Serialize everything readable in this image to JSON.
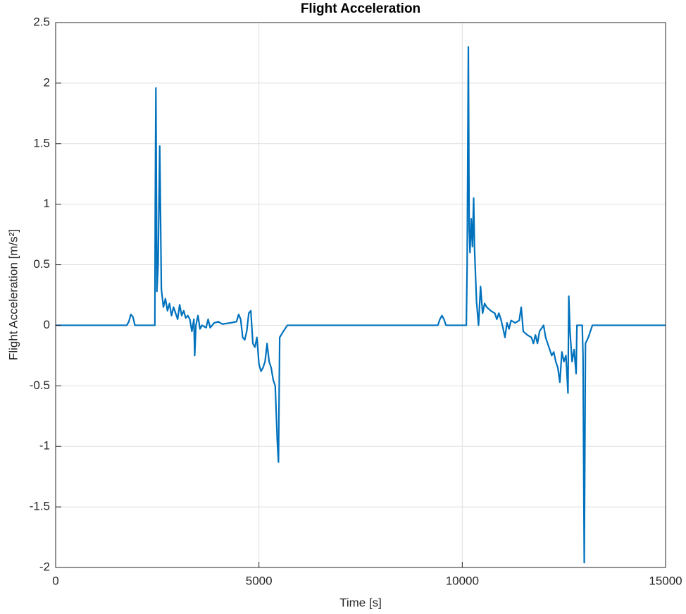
{
  "chart_data": {
    "type": "line",
    "title": "Flight Acceleration",
    "x_label": "Time [s]",
    "y_label": "Flight Acceleration [m/s²]",
    "x": [
      0,
      1750,
      1800,
      1850,
      1900,
      1950,
      2440,
      2450,
      2465,
      2490,
      2520,
      2560,
      2600,
      2650,
      2700,
      2750,
      2800,
      2850,
      2900,
      2950,
      3000,
      3050,
      3100,
      3150,
      3200,
      3250,
      3300,
      3350,
      3400,
      3420,
      3450,
      3500,
      3550,
      3600,
      3700,
      3750,
      3800,
      3900,
      4000,
      4100,
      4300,
      4450,
      4500,
      4550,
      4600,
      4650,
      4700,
      4750,
      4800,
      4850,
      4900,
      4950,
      5000,
      5050,
      5100,
      5150,
      5200,
      5250,
      5300,
      5350,
      5400,
      5450,
      5480,
      5510,
      5600,
      5700,
      9400,
      9450,
      9500,
      9550,
      9600,
      10100,
      10120,
      10150,
      10170,
      10190,
      10220,
      10250,
      10280,
      10300,
      10350,
      10400,
      10450,
      10500,
      10550,
      10600,
      10700,
      10800,
      10850,
      10900,
      10950,
      11000,
      11050,
      11100,
      11150,
      11200,
      11300,
      11400,
      11450,
      11500,
      11600,
      11700,
      11750,
      11800,
      11850,
      11900,
      12000,
      12050,
      12100,
      12150,
      12200,
      12250,
      12300,
      12350,
      12400,
      12450,
      12500,
      12550,
      12600,
      12620,
      12650,
      12700,
      12750,
      12800,
      12820,
      12950,
      12970,
      13000,
      13030,
      13100,
      13200,
      15000
    ],
    "series": [
      {
        "name": "Flight Acceleration",
        "color": "#0072BD",
        "values": [
          0,
          0,
          0.03,
          0.09,
          0.07,
          0,
          0,
          1.0,
          1.96,
          0.28,
          0.5,
          1.48,
          0.3,
          0.15,
          0.22,
          0.12,
          0.18,
          0.08,
          0.15,
          0.1,
          0.05,
          0.17,
          0.08,
          0.12,
          0.06,
          0.08,
          0.05,
          -0.05,
          0.05,
          -0.25,
          0,
          0.08,
          -0.03,
          0,
          -0.02,
          0.05,
          -0.02,
          0.02,
          0.03,
          0.01,
          0.02,
          0.03,
          0.09,
          0.05,
          -0.1,
          -0.12,
          -0.05,
          0.1,
          0.12,
          -0.15,
          -0.18,
          -0.1,
          -0.32,
          -0.38,
          -0.35,
          -0.3,
          -0.15,
          -0.3,
          -0.35,
          -0.45,
          -0.5,
          -0.95,
          -1.13,
          -0.1,
          -0.05,
          0,
          0,
          0.05,
          0.08,
          0.05,
          0,
          0,
          0.5,
          2.3,
          0.8,
          0.6,
          0.88,
          0.65,
          1.05,
          0.65,
          0.2,
          0,
          0.32,
          0.1,
          0.18,
          0.15,
          0.12,
          0.1,
          0.05,
          0.1,
          0.05,
          -0.02,
          -0.1,
          0.02,
          -0.03,
          0.04,
          0.02,
          0.04,
          0.15,
          -0.05,
          -0.08,
          -0.1,
          -0.15,
          -0.08,
          -0.15,
          -0.05,
          0,
          -0.1,
          -0.15,
          -0.2,
          -0.25,
          -0.22,
          -0.3,
          -0.35,
          -0.47,
          -0.22,
          -0.3,
          -0.25,
          -0.56,
          0.24,
          -0.05,
          -0.3,
          -0.2,
          -0.4,
          0,
          0,
          -0.25,
          -1.96,
          -0.15,
          -0.1,
          0,
          0
        ]
      }
    ],
    "xlim": [
      0,
      15000
    ],
    "xticks": [
      0,
      5000,
      10000,
      15000
    ],
    "ylim": [
      -2,
      2.5
    ],
    "yticks": [
      -2,
      -1.5,
      -1,
      -0.5,
      0,
      0.5,
      1,
      1.5,
      2,
      2.5
    ],
    "grid": true
  }
}
